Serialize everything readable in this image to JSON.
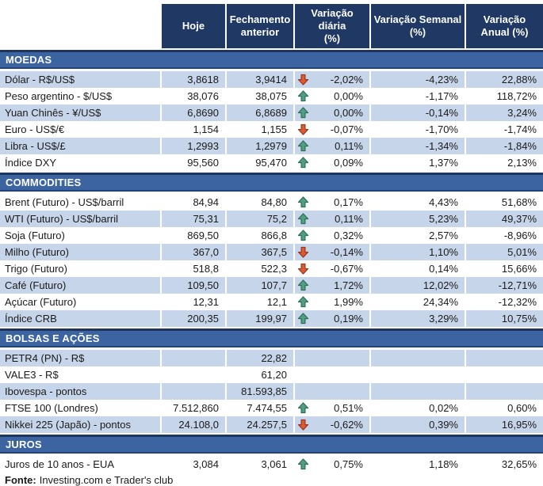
{
  "colors": {
    "header_bg": "#1F3864",
    "section_bar_bg": "#3C64A1",
    "section_bar_border": "#1E3560",
    "row_shaded_bg": "#C6D5EA",
    "arrow_up_fill": "#4FA083",
    "arrow_up_stroke": "#2D6B53",
    "arrow_down_fill": "#D95B33",
    "arrow_down_stroke": "#99331A"
  },
  "chart_data": {
    "type": "table",
    "columns": [
      "Hoje",
      "Fechamento\nanterior",
      "Variação diária\n(%)",
      "Variação Semanal\n(%)",
      "Variação\nAnual (%)"
    ],
    "sections": [
      {
        "title": "MOEDAS",
        "first_row_shaded": true,
        "rows": [
          {
            "label": "Dólar - R$/US$",
            "today": "3,8618",
            "prev": "3,9414",
            "arrow": "down",
            "daily": "-2,02%",
            "weekly": "-4,23%",
            "annual": "22,88%"
          },
          {
            "label": "Peso argentino - $/US$",
            "today": "38,076",
            "prev": "38,075",
            "arrow": "up",
            "daily": "0,00%",
            "weekly": "-1,17%",
            "annual": "118,72%"
          },
          {
            "label": "Yuan Chinês - ¥/US$",
            "today": "6,8690",
            "prev": "6,8689",
            "arrow": "up",
            "daily": "0,00%",
            "weekly": "-0,14%",
            "annual": "3,24%"
          },
          {
            "label": "Euro - US$/€",
            "today": "1,154",
            "prev": "1,155",
            "arrow": "down",
            "daily": "-0,07%",
            "weekly": "-1,70%",
            "annual": "-1,74%"
          },
          {
            "label": "Libra - US$/£",
            "today": "1,2993",
            "prev": "1,2979",
            "arrow": "up",
            "daily": "0,11%",
            "weekly": "-1,34%",
            "annual": "-1,84%"
          },
          {
            "label": "Índice DXY",
            "today": "95,560",
            "prev": "95,470",
            "arrow": "up",
            "daily": "0,09%",
            "weekly": "1,37%",
            "annual": "2,13%"
          }
        ]
      },
      {
        "title": "COMMODITIES",
        "first_row_shaded": false,
        "rows": [
          {
            "label": "Brent (Futuro) - US$/barril",
            "today": "84,94",
            "prev": "84,80",
            "arrow": "up",
            "daily": "0,17%",
            "weekly": "4,43%",
            "annual": "51,68%"
          },
          {
            "label": "WTI (Futuro) - US$/barril",
            "today": "75,31",
            "prev": "75,2",
            "arrow": "up",
            "daily": "0,11%",
            "weekly": "5,23%",
            "annual": "49,37%"
          },
          {
            "label": "Soja (Futuro)",
            "today": "869,50",
            "prev": "866,8",
            "arrow": "up",
            "daily": "0,32%",
            "weekly": "2,57%",
            "annual": "-8,96%"
          },
          {
            "label": "Milho (Futuro)",
            "today": "367,0",
            "prev": "367,5",
            "arrow": "down",
            "daily": "-0,14%",
            "weekly": "1,10%",
            "annual": "5,01%"
          },
          {
            "label": "Trigo (Futuro)",
            "today": "518,8",
            "prev": "522,3",
            "arrow": "down",
            "daily": "-0,67%",
            "weekly": "0,14%",
            "annual": "15,66%"
          },
          {
            "label": "Café (Futuro)",
            "today": "109,50",
            "prev": "107,7",
            "arrow": "up",
            "daily": "1,72%",
            "weekly": "12,02%",
            "annual": "-12,71%"
          },
          {
            "label": "Açúcar (Futuro)",
            "today": "12,31",
            "prev": "12,1",
            "arrow": "up",
            "daily": "1,99%",
            "weekly": "24,34%",
            "annual": "-12,32%"
          },
          {
            "label": "Índice CRB",
            "today": "200,35",
            "prev": "199,97",
            "arrow": "up",
            "daily": "0,19%",
            "weekly": "3,29%",
            "annual": "10,75%"
          }
        ]
      },
      {
        "title": "BOLSAS E AÇÕES",
        "first_row_shaded": true,
        "rows": [
          {
            "label": "PETR4 (PN) - R$",
            "today": "",
            "prev": "22,82",
            "arrow": null,
            "daily": "",
            "weekly": "",
            "annual": ""
          },
          {
            "label": "VALE3 - R$",
            "today": "",
            "prev": "61,20",
            "arrow": null,
            "daily": "",
            "weekly": "",
            "annual": ""
          },
          {
            "label": "Ibovespa - pontos",
            "today": "",
            "prev": "81.593,85",
            "arrow": null,
            "daily": "",
            "weekly": "",
            "annual": ""
          },
          {
            "label": "FTSE 100 (Londres)",
            "today": "7.512,860",
            "prev": "7.474,55",
            "arrow": "up",
            "daily": "0,51%",
            "weekly": "0,02%",
            "annual": "0,60%"
          },
          {
            "label": "Nikkei 225 (Japão) - pontos",
            "today": "24.108,0",
            "prev": "24.257,5",
            "arrow": "down",
            "daily": "-0,62%",
            "weekly": "0,39%",
            "annual": "16,95%"
          }
        ]
      },
      {
        "title": "JUROS",
        "first_row_shaded": false,
        "rows": [
          {
            "label": "Juros de 10 anos - EUA",
            "today": "3,084",
            "prev": "3,061",
            "arrow": "up",
            "daily": "0,75%",
            "weekly": "1,18%",
            "annual": "32,65%"
          }
        ]
      }
    ]
  },
  "source": {
    "label": "Fonte:",
    "text": "Investing.com e Trader's club"
  }
}
